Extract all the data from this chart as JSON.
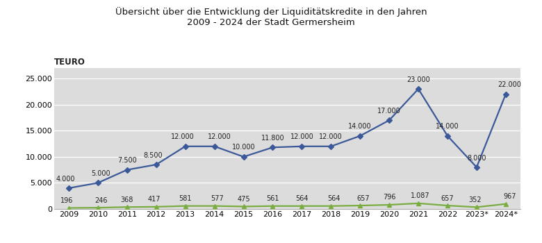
{
  "title_line1": "Übersicht über die Entwicklung der Liquiditätskredite in den Jahren",
  "title_line2": "2009 - 2024 der Stadt Germersheim",
  "ylabel": "TEURO",
  "years": [
    "2009",
    "2010",
    "2011",
    "2012",
    "2013",
    "2014",
    "2015",
    "2016",
    "2017",
    "2018",
    "2019",
    "2020",
    "2021",
    "2022",
    "2023*",
    "2024*"
  ],
  "blue_values": [
    4000,
    5000,
    7500,
    8500,
    12000,
    12000,
    10000,
    11800,
    12000,
    12000,
    14000,
    17000,
    23000,
    14000,
    8000,
    22000
  ],
  "green_values": [
    196,
    246,
    368,
    417,
    581,
    577,
    475,
    561,
    564,
    564,
    657,
    796,
    1087,
    657,
    352,
    967
  ],
  "blue_labels": [
    "4.000",
    "5.000",
    "7.500",
    "8.500",
    "12.000",
    "12.000",
    "10.000",
    "11.800",
    "12.000",
    "12.000",
    "14.000",
    "17.000",
    "23.000",
    "14.000",
    "8.000",
    "22.000"
  ],
  "green_labels": [
    "196",
    "246",
    "368",
    "417",
    "581",
    "577",
    "475",
    "561",
    "564",
    "564",
    "657",
    "796",
    "1.087",
    "657",
    "352",
    "967"
  ],
  "blue_color": "#3B5998",
  "green_color": "#7AAD41",
  "bg_color": "#DCDCDC",
  "ylim": [
    0,
    27000
  ],
  "yticks": [
    0,
    5000,
    10000,
    15000,
    20000,
    25000
  ],
  "ytick_labels": [
    "0",
    "5.000",
    "10.000",
    "15.000",
    "20.000",
    "25.000"
  ],
  "title_fontsize": 9.5,
  "label_fontsize": 7,
  "axis_fontsize": 8
}
